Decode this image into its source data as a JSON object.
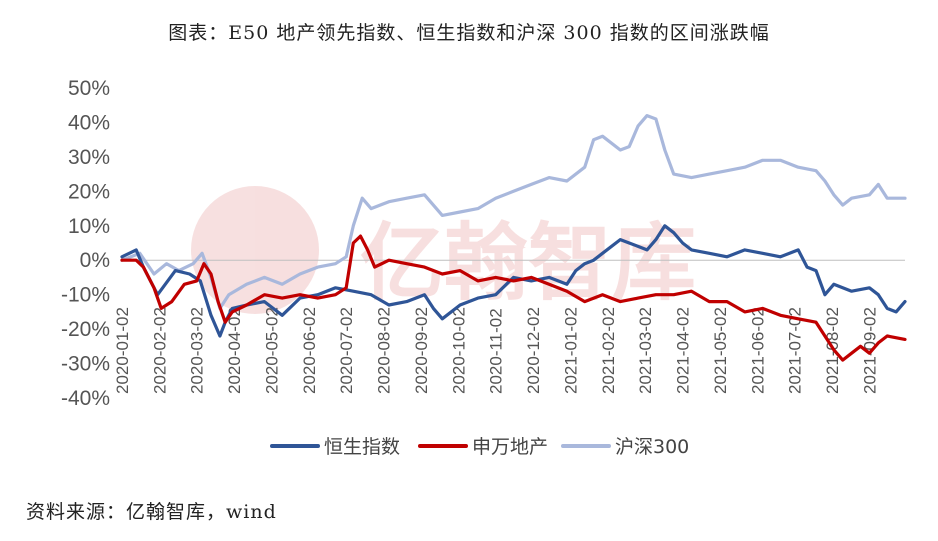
{
  "title": "图表：E50 地产领先指数、恒生指数和沪深 300 指数的区间涨跌幅",
  "source": "资料来源：亿翰智库，wind",
  "watermark": "亿翰智库",
  "chart_data": {
    "type": "line",
    "ylabel": "",
    "xlabel": "",
    "ylim": [
      -40,
      50
    ],
    "yticks": [
      -40,
      -30,
      -20,
      -10,
      0,
      10,
      20,
      30,
      40,
      50
    ],
    "ytick_labels": [
      "-40%",
      "-30%",
      "-20%",
      "-10%",
      "0%",
      "10%",
      "20%",
      "30%",
      "40%",
      "50%"
    ],
    "x_range": [
      0,
      440
    ],
    "xticks": [
      0,
      21,
      42,
      63,
      84,
      105,
      126,
      147,
      168,
      189,
      210,
      231,
      252,
      273,
      294,
      315,
      336,
      357,
      378,
      399,
      420
    ],
    "xtick_labels": [
      "2020-01-02",
      "2020-02-02",
      "2020-03-02",
      "2020-04-02",
      "2020-05-02",
      "2020-06-02",
      "2020-07-02",
      "2020-08-02",
      "2020-09-02",
      "2020-10-02",
      "2020-11-02",
      "2020-12-02",
      "2021-01-02",
      "2021-02-02",
      "2021-03-02",
      "2021-04-02",
      "2021-05-02",
      "2021-06-02",
      "2021-07-02",
      "2021-08-02",
      "2021-09-02"
    ],
    "legend_position": "bottom-center",
    "series": [
      {
        "name": "恒生指数",
        "color": "#2f5597",
        "x": [
          0,
          8,
          12,
          20,
          30,
          38,
          44,
          50,
          55,
          58,
          62,
          70,
          80,
          90,
          100,
          110,
          120,
          130,
          140,
          150,
          160,
          170,
          175,
          180,
          190,
          200,
          210,
          220,
          230,
          240,
          250,
          255,
          260,
          265,
          270,
          280,
          285,
          290,
          295,
          300,
          305,
          310,
          315,
          320,
          330,
          340,
          350,
          360,
          370,
          380,
          385,
          390,
          395,
          400,
          410,
          420,
          425,
          430,
          435,
          440
        ],
        "y": [
          1,
          3,
          -2,
          -10,
          -3,
          -4,
          -6,
          -16,
          -22,
          -18,
          -14,
          -13,
          -12,
          -16,
          -11,
          -10,
          -8,
          -9,
          -10,
          -13,
          -12,
          -10,
          -14,
          -17,
          -13,
          -11,
          -10,
          -5,
          -6,
          -5,
          -7,
          -3,
          -1,
          0,
          2,
          6,
          5,
          4,
          3,
          6,
          10,
          8,
          5,
          3,
          2,
          1,
          3,
          2,
          1,
          3,
          -2,
          -3,
          -10,
          -7,
          -9,
          -8,
          -10,
          -14,
          -15,
          -12
        ]
      },
      {
        "name": "申万地产",
        "color": "#c00000",
        "x": [
          0,
          8,
          12,
          18,
          22,
          28,
          35,
          42,
          46,
          50,
          54,
          58,
          62,
          70,
          80,
          90,
          100,
          110,
          120,
          126,
          130,
          134,
          138,
          142,
          150,
          160,
          170,
          180,
          190,
          200,
          210,
          220,
          230,
          240,
          250,
          260,
          270,
          280,
          290,
          300,
          310,
          320,
          330,
          340,
          350,
          360,
          370,
          380,
          390,
          395,
          400,
          405,
          410,
          415,
          420,
          425,
          430,
          440
        ],
        "y": [
          0,
          0,
          -2,
          -8,
          -14,
          -12,
          -7,
          -6,
          -1,
          -4,
          -12,
          -18,
          -15,
          -13,
          -10,
          -11,
          -10,
          -11,
          -10,
          -8,
          5,
          7,
          3,
          -2,
          0,
          -1,
          -2,
          -4,
          -3,
          -6,
          -5,
          -6,
          -5,
          -7,
          -9,
          -12,
          -10,
          -12,
          -11,
          -10,
          -10,
          -9,
          -12,
          -12,
          -15,
          -14,
          -16,
          -17,
          -18,
          -22,
          -26,
          -29,
          -27,
          -25,
          -27,
          -24,
          -22,
          -23
        ]
      },
      {
        "name": "沪深300",
        "color": "#a9b8dc",
        "x": [
          0,
          10,
          18,
          25,
          32,
          40,
          45,
          50,
          55,
          60,
          70,
          80,
          90,
          100,
          110,
          120,
          126,
          130,
          135,
          140,
          150,
          160,
          170,
          180,
          190,
          200,
          210,
          220,
          230,
          240,
          250,
          260,
          265,
          270,
          280,
          285,
          290,
          295,
          300,
          305,
          310,
          320,
          330,
          340,
          350,
          360,
          370,
          380,
          390,
          395,
          400,
          405,
          410,
          420,
          425,
          430,
          440
        ],
        "y": [
          0,
          2,
          -4,
          -1,
          -3,
          -1,
          2,
          -5,
          -14,
          -10,
          -7,
          -5,
          -7,
          -4,
          -2,
          -1,
          1,
          10,
          18,
          15,
          17,
          18,
          19,
          13,
          14,
          15,
          18,
          20,
          22,
          24,
          23,
          27,
          35,
          36,
          32,
          33,
          39,
          42,
          41,
          32,
          25,
          24,
          25,
          26,
          27,
          29,
          29,
          27,
          26,
          23,
          19,
          16,
          18,
          19,
          22,
          18,
          18
        ]
      }
    ]
  }
}
